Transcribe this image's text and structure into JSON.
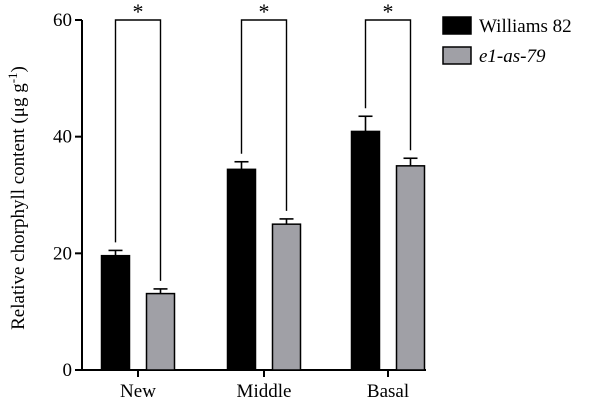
{
  "chart_data": {
    "type": "bar",
    "title": "",
    "xlabel": "",
    "ylabel": {
      "main": "Relative chorphyll content (",
      "unit_base": "μg g",
      "unit_exp": "-1",
      "close": ")"
    },
    "categories": [
      "New",
      "Middle",
      "Basal"
    ],
    "ylim": [
      0,
      60
    ],
    "yticks": [
      0,
      20,
      40,
      60
    ],
    "series": [
      {
        "name": "Williams 82",
        "name_style": "normal",
        "color": "#000000",
        "values": [
          19.6,
          34.4,
          40.9
        ],
        "errors": [
          0.9,
          1.3,
          2.6
        ]
      },
      {
        "name": "e1-as-79",
        "name_style": "italic",
        "color": "#a0a0a6",
        "values": [
          13.1,
          25.0,
          35.0
        ],
        "errors": [
          0.8,
          0.9,
          1.3
        ]
      }
    ],
    "significance": [
      {
        "category_index": 0,
        "label": "*"
      },
      {
        "category_index": 1,
        "label": "*"
      },
      {
        "category_index": 2,
        "label": "*"
      }
    ],
    "legend_position": "top-right",
    "grid": false
  }
}
